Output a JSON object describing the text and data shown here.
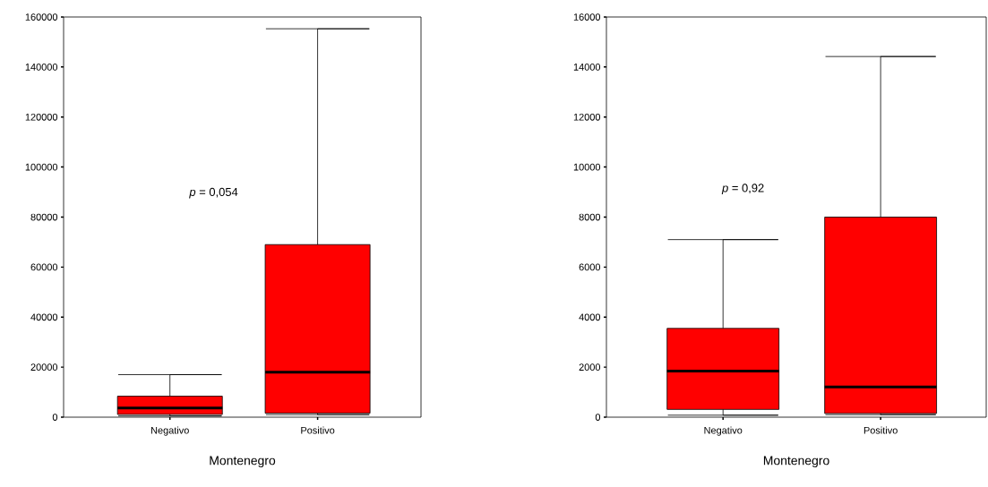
{
  "chart_data": [
    {
      "type": "box",
      "xlabel": "Montenegro",
      "categories": [
        "Negativo",
        "Positivo"
      ],
      "color": "#ff0000",
      "boxes": [
        {
          "low": 500,
          "q1": 1100,
          "median": 3700,
          "q3": 8400,
          "high": 17000
        },
        {
          "low": 1000,
          "q1": 1600,
          "median": 18000,
          "q3": 69000,
          "high": 155300
        }
      ],
      "ylim": [
        0,
        160000
      ],
      "yticks": [
        0,
        20000,
        40000,
        60000,
        80000,
        100000,
        120000,
        140000,
        160000
      ],
      "annotations": [
        "*p* = 0,054"
      ]
    },
    {
      "type": "box",
      "xlabel": "Montenegro",
      "categories": [
        "Negativo",
        "Positivo"
      ],
      "color": "#ff0000",
      "boxes": [
        {
          "low": 80,
          "q1": 310,
          "median": 1840,
          "q3": 3550,
          "high": 7100
        },
        {
          "low": 100,
          "q1": 150,
          "median": 1210,
          "q3": 8000,
          "high": 14420
        }
      ],
      "ylim": [
        0,
        16000
      ],
      "yticks": [
        0,
        2000,
        4000,
        6000,
        8000,
        10000,
        12000,
        14000,
        16000
      ],
      "annotations": [
        "*p* = 0,92"
      ]
    }
  ]
}
